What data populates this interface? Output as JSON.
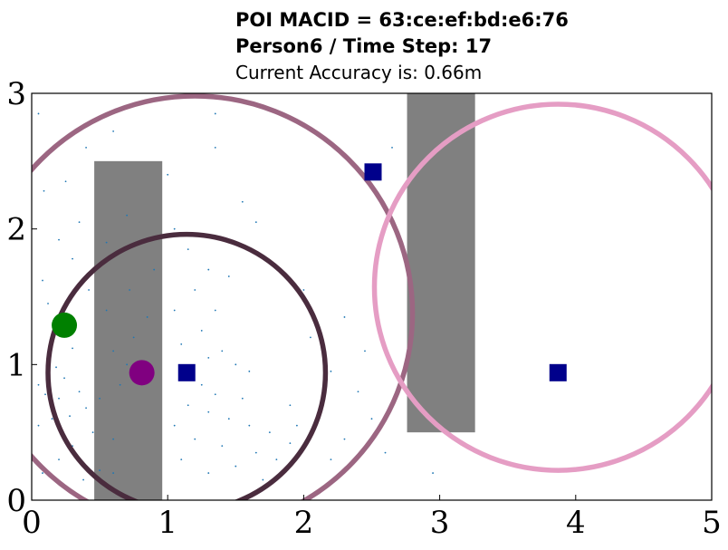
{
  "title": {
    "line1": "POI MACID = 63:ce:ef:bd:e6:76",
    "line2": "Person6 / Time Step: 17",
    "line3": "Current Accuracy is: 0.66m"
  },
  "chart_data": {
    "type": "scatter",
    "xlim": [
      0,
      5
    ],
    "ylim": [
      0,
      3
    ],
    "xticks": [
      "0",
      "1",
      "2",
      "3",
      "4",
      "5"
    ],
    "yticks": [
      "0",
      "1",
      "2",
      "3"
    ],
    "grid": false,
    "obstacles": [
      {
        "x0": 0.46,
        "x1": 0.96,
        "y0": 0.0,
        "y1": 2.5,
        "color": "#808080"
      },
      {
        "x0": 2.76,
        "x1": 3.26,
        "y0": 0.5,
        "y1": 3.0,
        "color": "#808080"
      }
    ],
    "anchors": {
      "color": "#00008b",
      "points": [
        [
          1.14,
          0.94
        ],
        [
          2.51,
          2.42
        ],
        [
          3.87,
          0.94
        ]
      ]
    },
    "true_position": {
      "x": 0.24,
      "y": 1.29,
      "color": "#008000"
    },
    "estimated_position": {
      "x": 0.81,
      "y": 0.94,
      "color": "#800080"
    },
    "range_circles": [
      {
        "cx": 1.14,
        "cy": 0.94,
        "r": 1.02,
        "color": "#4a2c3e"
      },
      {
        "cx": 1.2,
        "cy": 1.38,
        "r": 1.6,
        "color": "#9c6682"
      },
      {
        "cx": 3.87,
        "cy": 1.57,
        "r": 1.35,
        "color": "#e59dc4"
      }
    ],
    "particles": {
      "color": "#1f77b4",
      "points": [
        [
          0.05,
          2.85
        ],
        [
          0.4,
          2.6
        ],
        [
          0.6,
          2.72
        ],
        [
          0.25,
          2.35
        ],
        [
          0.09,
          2.28
        ],
        [
          0.35,
          2.05
        ],
        [
          0.7,
          2.1
        ],
        [
          0.2,
          1.92
        ],
        [
          0.3,
          1.78
        ],
        [
          0.08,
          1.62
        ],
        [
          0.42,
          1.55
        ],
        [
          0.55,
          1.4
        ],
        [
          0.12,
          1.45
        ],
        [
          0.3,
          1.12
        ],
        [
          0.18,
          0.98
        ],
        [
          0.24,
          0.9
        ],
        [
          0.05,
          0.85
        ],
        [
          0.1,
          0.78
        ],
        [
          0.2,
          0.75
        ],
        [
          0.35,
          0.8
        ],
        [
          0.4,
          0.68
        ],
        [
          0.28,
          0.62
        ],
        [
          0.15,
          0.6
        ],
        [
          0.05,
          0.55
        ],
        [
          0.45,
          0.5
        ],
        [
          0.6,
          0.45
        ],
        [
          0.3,
          0.4
        ],
        [
          0.2,
          0.3
        ],
        [
          0.5,
          0.22
        ],
        [
          0.08,
          0.2
        ],
        [
          0.38,
          0.15
        ],
        [
          0.6,
          0.2
        ],
        [
          0.5,
          0.75
        ],
        [
          0.65,
          0.85
        ],
        [
          0.7,
          1.0
        ],
        [
          0.6,
          1.1
        ],
        [
          0.75,
          1.2
        ],
        [
          0.85,
          1.35
        ],
        [
          0.72,
          1.55
        ],
        [
          0.9,
          1.7
        ],
        [
          1.05,
          2.0
        ],
        [
          1.15,
          1.85
        ],
        [
          1.3,
          1.7
        ],
        [
          1.45,
          1.65
        ],
        [
          1.2,
          1.55
        ],
        [
          1.05,
          1.4
        ],
        [
          1.35,
          1.4
        ],
        [
          1.25,
          1.25
        ],
        [
          1.1,
          1.15
        ],
        [
          1.4,
          1.1
        ],
        [
          1.3,
          1.05
        ],
        [
          1.5,
          1.0
        ],
        [
          1.6,
          0.95
        ],
        [
          1.25,
          0.85
        ],
        [
          1.35,
          0.78
        ],
        [
          1.55,
          0.75
        ],
        [
          1.15,
          0.7
        ],
        [
          1.3,
          0.65
        ],
        [
          1.45,
          0.6
        ],
        [
          1.6,
          0.55
        ],
        [
          1.05,
          0.55
        ],
        [
          1.2,
          0.45
        ],
        [
          1.4,
          0.4
        ],
        [
          1.65,
          0.35
        ],
        [
          1.75,
          0.5
        ],
        [
          1.8,
          0.3
        ],
        [
          1.9,
          0.42
        ],
        [
          2.0,
          0.38
        ],
        [
          1.95,
          0.55
        ],
        [
          2.1,
          0.6
        ],
        [
          2.2,
          0.3
        ],
        [
          2.3,
          0.45
        ],
        [
          1.5,
          0.25
        ],
        [
          1.3,
          0.2
        ],
        [
          1.1,
          0.3
        ],
        [
          1.7,
          0.15
        ],
        [
          2.5,
          0.6
        ],
        [
          2.6,
          0.35
        ],
        [
          2.4,
          0.8
        ],
        [
          2.2,
          0.95
        ],
        [
          2.05,
          1.2
        ],
        [
          2.3,
          1.35
        ],
        [
          2.0,
          1.55
        ],
        [
          2.45,
          1.1
        ],
        [
          1.55,
          2.2
        ],
        [
          1.65,
          2.05
        ],
        [
          2.65,
          2.6
        ],
        [
          1.35,
          2.6
        ],
        [
          1.35,
          2.85
        ],
        [
          2.95,
          0.2
        ],
        [
          1.0,
          2.4
        ],
        [
          0.55,
          1.9
        ],
        [
          1.9,
          0.7
        ],
        [
          2.15,
          0.85
        ],
        [
          1.05,
          1.95
        ]
      ]
    }
  }
}
